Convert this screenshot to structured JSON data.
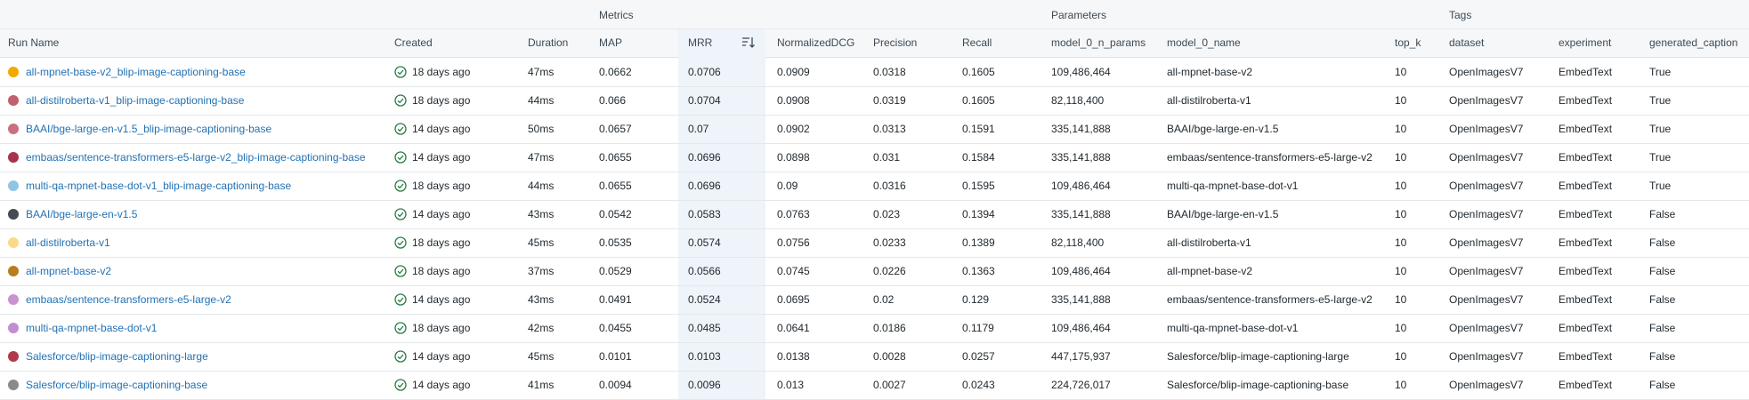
{
  "groups": {
    "metrics": "Metrics",
    "parameters": "Parameters",
    "tags": "Tags"
  },
  "columns": {
    "run_name": "Run Name",
    "created": "Created",
    "duration": "Duration",
    "map": "MAP",
    "mrr": "MRR",
    "ndcg": "NormalizedDCG",
    "precision": "Precision",
    "recall": "Recall",
    "n_params": "model_0_n_params",
    "model_name": "model_0_name",
    "top_k": "top_k",
    "dataset": "dataset",
    "experiment": "experiment",
    "generated_caption": "generated_caption"
  },
  "rows": [
    {
      "name": "all-mpnet-base-v2_blip-image-captioning-base",
      "color": "#f2a900",
      "created": "18 days ago",
      "duration": "47ms",
      "map": "0.0662",
      "mrr": "0.0706",
      "ndcg": "0.0909",
      "precision": "0.0318",
      "recall": "0.1605",
      "n_params": "109,486,464",
      "model_name": "all-mpnet-base-v2",
      "top_k": "10",
      "dataset": "OpenImagesV7",
      "experiment": "EmbedText",
      "generated_caption": "True"
    },
    {
      "name": "all-distilroberta-v1_blip-image-captioning-base",
      "color": "#c0616d",
      "created": "18 days ago",
      "duration": "44ms",
      "map": "0.066",
      "mrr": "0.0704",
      "ndcg": "0.0908",
      "precision": "0.0319",
      "recall": "0.1605",
      "n_params": "82,118,400",
      "model_name": "all-distilroberta-v1",
      "top_k": "10",
      "dataset": "OpenImagesV7",
      "experiment": "EmbedText",
      "generated_caption": "True"
    },
    {
      "name": "BAAI/bge-large-en-v1.5_blip-image-captioning-base",
      "color": "#c9707e",
      "created": "14 days ago",
      "duration": "50ms",
      "map": "0.0657",
      "mrr": "0.07",
      "ndcg": "0.0902",
      "precision": "0.0313",
      "recall": "0.1591",
      "n_params": "335,141,888",
      "model_name": "BAAI/bge-large-en-v1.5",
      "top_k": "10",
      "dataset": "OpenImagesV7",
      "experiment": "EmbedText",
      "generated_caption": "True"
    },
    {
      "name": "embaas/sentence-transformers-e5-large-v2_blip-image-captioning-base",
      "color": "#a8344b",
      "created": "14 days ago",
      "duration": "47ms",
      "map": "0.0655",
      "mrr": "0.0696",
      "ndcg": "0.0898",
      "precision": "0.031",
      "recall": "0.1584",
      "n_params": "335,141,888",
      "model_name": "embaas/sentence-transformers-e5-large-v2",
      "top_k": "10",
      "dataset": "OpenImagesV7",
      "experiment": "EmbedText",
      "generated_caption": "True"
    },
    {
      "name": "multi-qa-mpnet-base-dot-v1_blip-image-captioning-base",
      "color": "#8ec6e2",
      "created": "18 days ago",
      "duration": "44ms",
      "map": "0.0655",
      "mrr": "0.0696",
      "ndcg": "0.09",
      "precision": "0.0316",
      "recall": "0.1595",
      "n_params": "109,486,464",
      "model_name": "multi-qa-mpnet-base-dot-v1",
      "top_k": "10",
      "dataset": "OpenImagesV7",
      "experiment": "EmbedText",
      "generated_caption": "True"
    },
    {
      "name": "BAAI/bge-large-en-v1.5",
      "color": "#444b52",
      "created": "14 days ago",
      "duration": "43ms",
      "map": "0.0542",
      "mrr": "0.0583",
      "ndcg": "0.0763",
      "precision": "0.023",
      "recall": "0.1394",
      "n_params": "335,141,888",
      "model_name": "BAAI/bge-large-en-v1.5",
      "top_k": "10",
      "dataset": "OpenImagesV7",
      "experiment": "EmbedText",
      "generated_caption": "False"
    },
    {
      "name": "all-distilroberta-v1",
      "color": "#fcd98a",
      "created": "18 days ago",
      "duration": "45ms",
      "map": "0.0535",
      "mrr": "0.0574",
      "ndcg": "0.0756",
      "precision": "0.0233",
      "recall": "0.1389",
      "n_params": "82,118,400",
      "model_name": "all-distilroberta-v1",
      "top_k": "10",
      "dataset": "OpenImagesV7",
      "experiment": "EmbedText",
      "generated_caption": "False"
    },
    {
      "name": "all-mpnet-base-v2",
      "color": "#b87d1c",
      "created": "18 days ago",
      "duration": "37ms",
      "map": "0.0529",
      "mrr": "0.0566",
      "ndcg": "0.0745",
      "precision": "0.0226",
      "recall": "0.1363",
      "n_params": "109,486,464",
      "model_name": "all-mpnet-base-v2",
      "top_k": "10",
      "dataset": "OpenImagesV7",
      "experiment": "EmbedText",
      "generated_caption": "False"
    },
    {
      "name": "embaas/sentence-transformers-e5-large-v2",
      "color": "#c993d1",
      "created": "14 days ago",
      "duration": "43ms",
      "map": "0.0491",
      "mrr": "0.0524",
      "ndcg": "0.0695",
      "precision": "0.02",
      "recall": "0.129",
      "n_params": "335,141,888",
      "model_name": "embaas/sentence-transformers-e5-large-v2",
      "top_k": "10",
      "dataset": "OpenImagesV7",
      "experiment": "EmbedText",
      "generated_caption": "False"
    },
    {
      "name": "multi-qa-mpnet-base-dot-v1",
      "color": "#c08fd0",
      "created": "18 days ago",
      "duration": "42ms",
      "map": "0.0455",
      "mrr": "0.0485",
      "ndcg": "0.0641",
      "precision": "0.0186",
      "recall": "0.1179",
      "n_params": "109,486,464",
      "model_name": "multi-qa-mpnet-base-dot-v1",
      "top_k": "10",
      "dataset": "OpenImagesV7",
      "experiment": "EmbedText",
      "generated_caption": "False"
    },
    {
      "name": "Salesforce/blip-image-captioning-large",
      "color": "#b03a4c",
      "created": "14 days ago",
      "duration": "45ms",
      "map": "0.0101",
      "mrr": "0.0103",
      "ndcg": "0.0138",
      "precision": "0.0028",
      "recall": "0.0257",
      "n_params": "447,175,937",
      "model_name": "Salesforce/blip-image-captioning-large",
      "top_k": "10",
      "dataset": "OpenImagesV7",
      "experiment": "EmbedText",
      "generated_caption": "False"
    },
    {
      "name": "Salesforce/blip-image-captioning-base",
      "color": "#8a8a8a",
      "created": "14 days ago",
      "duration": "41ms",
      "map": "0.0094",
      "mrr": "0.0096",
      "ndcg": "0.013",
      "precision": "0.0027",
      "recall": "0.0243",
      "n_params": "224,726,017",
      "model_name": "Salesforce/blip-image-captioning-base",
      "top_k": "10",
      "dataset": "OpenImagesV7",
      "experiment": "EmbedText",
      "generated_caption": "False"
    }
  ]
}
